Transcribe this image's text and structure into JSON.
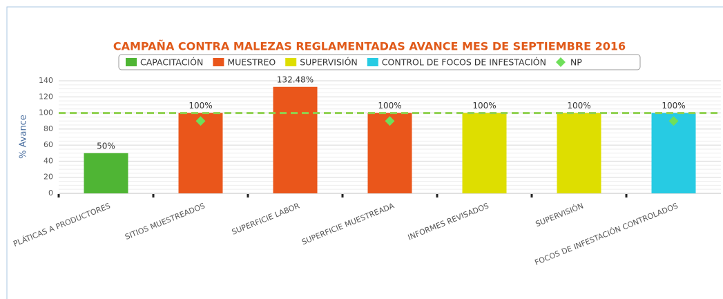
{
  "chart_data": {
    "type": "bar",
    "title": "CAMPAÑA CONTRA MALEZAS REGLAMENTADAS AVANCE MES DE SEPTIEMBRE 2016",
    "y_label": "% Avance",
    "categories": [
      "PLÁTICAS A PRODUCTORES",
      "SITIOS MUESTREADOS",
      "SUPERFICIE LABOR",
      "SUPERFICIE MUESTREADA",
      "INFORMES REVISADOS",
      "SUPERVISIÓN",
      "FOCOS DE INFESTACIÓN CONTROLADOS"
    ],
    "series": [
      {
        "name": "CAPACITACIÓN",
        "color": "#4fb534",
        "values": [
          50,
          null,
          null,
          null,
          null,
          null,
          null
        ],
        "value_labels": [
          "50%",
          null,
          null,
          null,
          null,
          null,
          null
        ]
      },
      {
        "name": "MUESTREO",
        "color": "#ea561b",
        "values": [
          null,
          100,
          132.48,
          100,
          null,
          null,
          null
        ],
        "value_labels": [
          null,
          "100%",
          "132.48%",
          "100%",
          null,
          null,
          null
        ]
      },
      {
        "name": "SUPERVISIÓN",
        "color": "#dede00",
        "values": [
          null,
          null,
          null,
          null,
          100,
          100,
          null
        ],
        "value_labels": [
          null,
          null,
          null,
          null,
          "100%",
          "100%",
          null
        ]
      },
      {
        "name": "CONTROL DE FOCOS DE INFESTACIÓN",
        "color": "#27cbe3",
        "values": [
          null,
          null,
          null,
          null,
          null,
          null,
          100
        ],
        "value_labels": [
          null,
          null,
          null,
          null,
          null,
          null,
          "100%"
        ]
      },
      {
        "name": "NP",
        "color": "#6fdf5a",
        "marker": "diamond",
        "values": [
          null,
          90,
          null,
          90,
          null,
          null,
          90
        ]
      }
    ],
    "target_line": {
      "value": 100,
      "color": "#8fd14f"
    },
    "ylim": [
      0,
      140
    ],
    "yticks": [
      0,
      20,
      40,
      60,
      80,
      100,
      120,
      140
    ],
    "grid": true
  }
}
